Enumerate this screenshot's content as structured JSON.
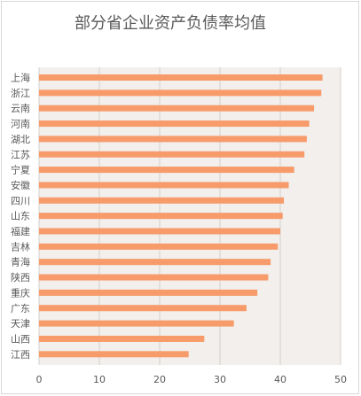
{
  "chart_data": {
    "type": "bar",
    "orientation": "horizontal",
    "title": "部分省企业资产负债率均值",
    "categories": [
      "上海",
      "浙江",
      "云南",
      "河南",
      "湖北",
      "江苏",
      "宁夏",
      "安徽",
      "四川",
      "山东",
      "福建",
      "吉林",
      "青海",
      "陕西",
      "重庆",
      "广东",
      "天津",
      "山西",
      "江西"
    ],
    "values": [
      47,
      46.8,
      45.6,
      44.8,
      44.4,
      44,
      42.3,
      41.4,
      40.6,
      40.4,
      40,
      39.6,
      38.4,
      38,
      36.2,
      34.4,
      32.3,
      27.4,
      24.8
    ],
    "xlim": [
      0,
      50
    ],
    "xticks": [
      0,
      10,
      20,
      30,
      40,
      50
    ],
    "grid": true,
    "colors": {
      "bar": "#f79b6b",
      "plot_bg": "#f2efec",
      "grid": "#d4d0cc"
    }
  }
}
